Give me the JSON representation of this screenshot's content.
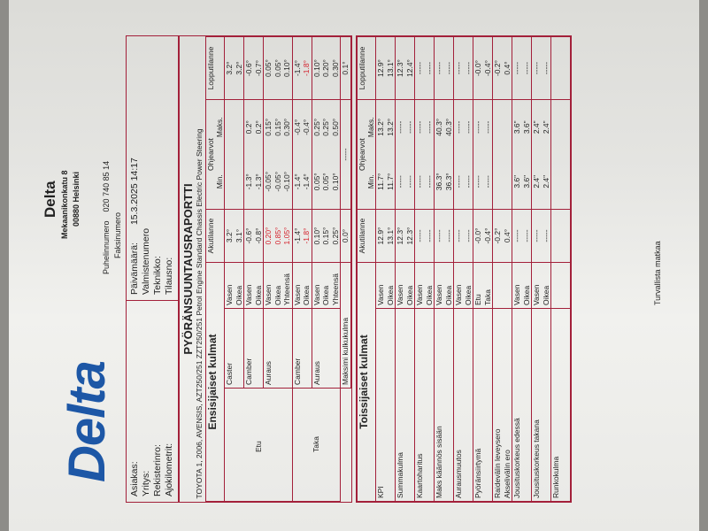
{
  "logo": "Delta",
  "company": {
    "name": "Delta",
    "street": "Mekaanikonkatu 8",
    "city": "00880 Helsinki",
    "phone_label": "Puhelinnumero",
    "phone": "020 740 85 14",
    "fax_label": "Faksinumero"
  },
  "info": {
    "left": [
      "Asiakas:",
      "Yritys:",
      "Rekisterinro:",
      "Ajokilometrit:"
    ],
    "date_label": "Päivämäärä:",
    "date": "15.3.2025  14:17",
    "right": [
      "Valmistenumero",
      "Teknikko:",
      "Tilausno:"
    ]
  },
  "report": {
    "title": "PYÖRÄNSUUNTAUSRAPORTTI",
    "vehicle": "TOYOTA 1, 2006, AVENSIS, AZT250/251 ZZT250/251 Petrol Engine Standard Chassis Electric Power Steering"
  },
  "headers": {
    "current": "Akutilanne",
    "spec": "Ohjearvot",
    "min": "Min.",
    "max": "Maks.",
    "final": "Lopputilanne"
  },
  "primary": {
    "title": "Ensisijaiset kulmat",
    "groups": [
      {
        "group": "Etu",
        "rows": [
          {
            "item": "Caster",
            "sides": [
              "Vasen",
              "Oikea"
            ],
            "current": [
              "3.2°",
              "3.1°"
            ],
            "min": [
              "",
              ""
            ],
            "max": [
              "",
              ""
            ],
            "final": [
              "3.2°",
              "3.2°"
            ],
            "red_current": [],
            "red_final": []
          },
          {
            "item": "Camber",
            "sides": [
              "Vasen",
              "Oikea"
            ],
            "current": [
              "-0.6°",
              "-0.8°"
            ],
            "min": [
              "-1.3°",
              "-1.3°"
            ],
            "max": [
              "0.2°",
              "0.2°"
            ],
            "final": [
              "-0.6°",
              "-0.7°"
            ],
            "red_current": [],
            "red_final": []
          },
          {
            "item": "Auraus",
            "sides": [
              "Vasen",
              "Oikea",
              "Yhteensä"
            ],
            "current": [
              "0.20°",
              "0.85°",
              "1.05°"
            ],
            "min": [
              "-0.05°",
              "-0.05°",
              "-0.10°"
            ],
            "max": [
              "0.15°",
              "0.15°",
              "0.30°"
            ],
            "final": [
              "0.05°",
              "0.05°",
              "0.10°"
            ],
            "red_current": [
              0,
              1,
              2
            ],
            "red_final": []
          }
        ]
      },
      {
        "group": "Taka",
        "rows": [
          {
            "item": "Camber",
            "sides": [
              "Vasen",
              "Oikea"
            ],
            "current": [
              "-1.4°",
              "-1.8°"
            ],
            "min": [
              "-1.4°",
              "-1.4°"
            ],
            "max": [
              "-0.4°",
              "-0.4°"
            ],
            "final": [
              "-1.4°",
              "-1.8°"
            ],
            "red_current": [
              1
            ],
            "red_final": [
              1
            ]
          },
          {
            "item": "Auraus",
            "sides": [
              "Vasen",
              "Oikea",
              "Yhteensä"
            ],
            "current": [
              "0.10°",
              "0.15°",
              "0.25°"
            ],
            "min": [
              "0.05°",
              "0.05°",
              "0.10°"
            ],
            "max": [
              "0.25°",
              "0.25°",
              "0.50°"
            ],
            "final": [
              "0.10°",
              "0.20°",
              "0.30°"
            ],
            "red_current": [],
            "red_final": []
          }
        ]
      }
    ],
    "max_angle": {
      "label": "Maksimi kulkukulma",
      "current": "0.0°",
      "spec": "-----",
      "final": "0.1°"
    }
  },
  "secondary": {
    "title": "Toissijaiset kulmat",
    "rows": [
      {
        "item": [
          "KPI"
        ],
        "sides": [
          "Vasen",
          "Oikea"
        ],
        "current": [
          "12.9°",
          "13.1°"
        ],
        "min": [
          "11.7°",
          "11.7°"
        ],
        "max": [
          "13.2°",
          "13.2°"
        ],
        "final": [
          "12.9°",
          "13.1°"
        ]
      },
      {
        "item": [
          "Summakulma"
        ],
        "sides": [
          "Vasen",
          "Oikea"
        ],
        "current": [
          "12.3°",
          "12.3°"
        ],
        "min": [
          "-----",
          "-----"
        ],
        "max": [
          "-----",
          "-----"
        ],
        "final": [
          "12.3°",
          "12.4°"
        ]
      },
      {
        "item": [
          "Kaartoharitus"
        ],
        "sides": [
          "Vasen",
          "Oikea"
        ],
        "current": [
          "-----",
          "-----"
        ],
        "min": [
          "-----",
          "-----"
        ],
        "max": [
          "-----",
          "-----"
        ],
        "final": [
          "-----",
          "-----"
        ]
      },
      {
        "item": [
          "Maks käännös sisään"
        ],
        "sides": [
          "Vasen",
          "Oikea"
        ],
        "current": [
          "-----",
          "-----"
        ],
        "min": [
          "36.3°",
          "36.3°"
        ],
        "max": [
          "40.3°",
          "40.3°"
        ],
        "final": [
          "-----",
          "-----"
        ]
      },
      {
        "item": [
          "Aurausmuutos"
        ],
        "sides": [
          "Vasen",
          "Oikea"
        ],
        "current": [
          "-----",
          "-----"
        ],
        "min": [
          "-----",
          "-----"
        ],
        "max": [
          "-----",
          "-----"
        ],
        "final": [
          "-----",
          "-----"
        ]
      },
      {
        "item": [
          "Pyöränsiirtymä"
        ],
        "sides": [
          "Etu",
          "Taka"
        ],
        "current": [
          "-0.0°",
          "-0.4°"
        ],
        "min": [
          "-----",
          "-----"
        ],
        "max": [
          "-----",
          "-----"
        ],
        "final": [
          "-0.0°",
          "-0.4°"
        ]
      },
      {
        "item": [
          "Raidevälin leveysero",
          "Akselivälin ero"
        ],
        "sides": [
          "",
          ""
        ],
        "current": [
          "-0.2°",
          "0.4°"
        ],
        "min": [
          "",
          ""
        ],
        "max": [
          "",
          ""
        ],
        "final": [
          "-0.2°",
          "0.4°"
        ]
      },
      {
        "item": [
          "Jousituskorkeus edessä"
        ],
        "sides": [
          "Vasen",
          "Oikea"
        ],
        "current": [
          "-----",
          "-----"
        ],
        "min": [
          "3.6\"",
          "3.6\""
        ],
        "max": [
          "3.6\"",
          "3.6\""
        ],
        "final": [
          "-----",
          "-----"
        ]
      },
      {
        "item": [
          "Jousituskorkeus takana"
        ],
        "sides": [
          "Vasen",
          "Oikea"
        ],
        "current": [
          "-----",
          "-----"
        ],
        "min": [
          "2.4\"",
          "2.4\""
        ],
        "max": [
          "2.4\"",
          "2.4\""
        ],
        "final": [
          "-----",
          "-----"
        ]
      },
      {
        "item": [
          "Runkokulma"
        ],
        "sides": [
          ""
        ],
        "current": [
          ""
        ],
        "min": [
          ""
        ],
        "max": [
          ""
        ],
        "final": [
          ""
        ]
      }
    ]
  },
  "footer": "Turvallista matkaa",
  "colors": {
    "brand": "#1d57a6",
    "table_border": "#a3203a",
    "out_of_range": "#d4202a"
  }
}
